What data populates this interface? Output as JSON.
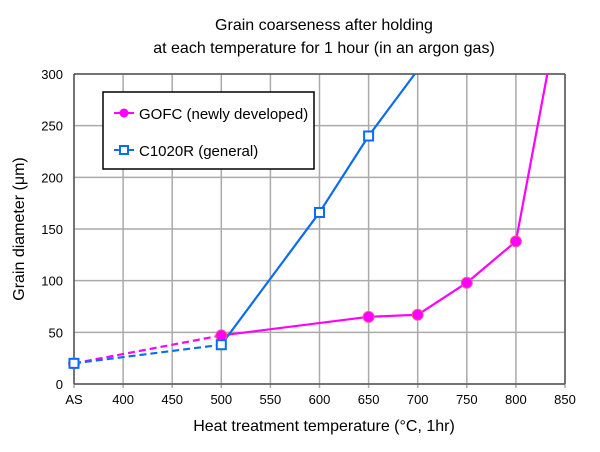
{
  "chart_data": {
    "type": "line",
    "title": [
      "Grain coarseness after holding",
      "at each temperature for 1 hour (in an argon gas)"
    ],
    "xlabel": "Heat treatment temperature (°C, 1hr)",
    "ylabel": "Grain diameter (μm)",
    "x_ticks": [
      "AS",
      "400",
      "450",
      "500",
      "550",
      "600",
      "650",
      "700",
      "750",
      "800",
      "850"
    ],
    "x_tick_values": [
      350,
      400,
      450,
      500,
      550,
      600,
      650,
      700,
      750,
      800,
      850
    ],
    "y_ticks": [
      0,
      50,
      100,
      150,
      200,
      250,
      300
    ],
    "xlim": [
      350,
      850
    ],
    "ylim": [
      0,
      300
    ],
    "grid": true,
    "legend_position": "top-left",
    "series": [
      {
        "name": "GOFC (newly developed)",
        "color": "#ff00ff",
        "marker": "circle",
        "x": [
          "AS",
          500,
          650,
          700,
          750,
          800
        ],
        "points": [
          [
            350,
            20
          ],
          [
            500,
            47
          ],
          [
            650,
            65
          ],
          [
            700,
            67
          ],
          [
            750,
            98
          ],
          [
            800,
            138
          ]
        ],
        "dashed_until": 500,
        "continues_to": [
          832,
          300
        ]
      },
      {
        "name": "C1020R (general)",
        "color": "#0a6cf0",
        "marker": "square",
        "points": [
          [
            350,
            20
          ],
          [
            500,
            38
          ],
          [
            600,
            166
          ],
          [
            650,
            240
          ]
        ],
        "dashed_until": 500,
        "continues_to": [
          697,
          300
        ]
      }
    ]
  }
}
